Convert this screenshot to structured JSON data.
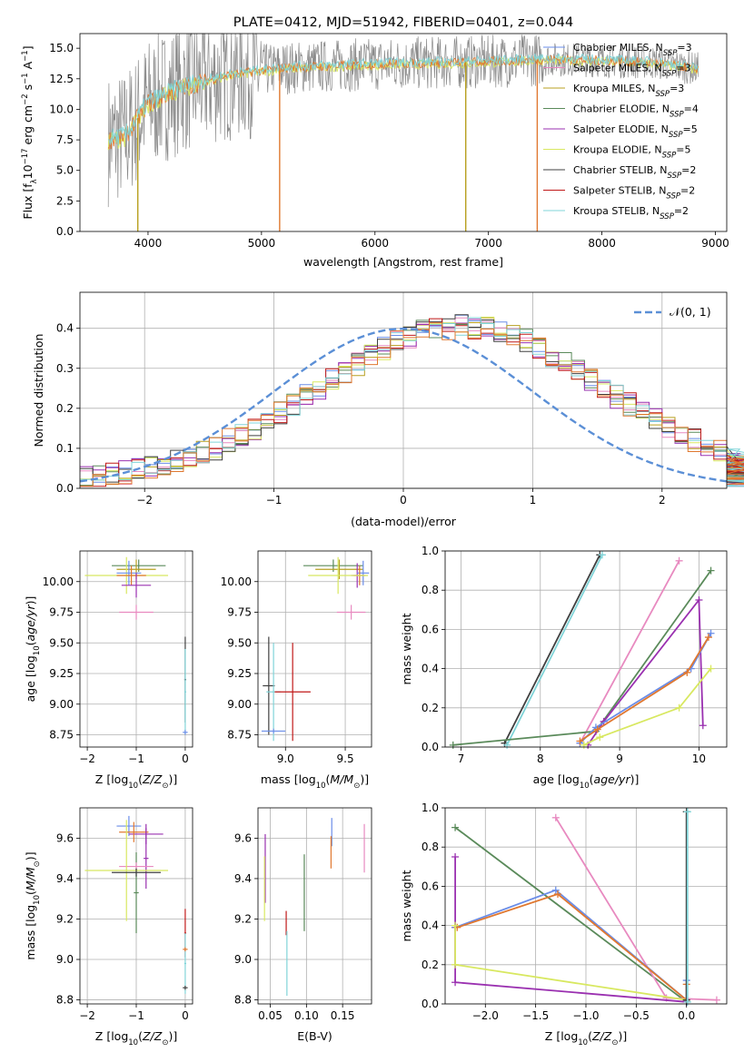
{
  "colors": {
    "Chabrier MILES": "#6a8de8",
    "Salpeter MILES": "#e88ac0",
    "Kroupa MILES": "#b8a020",
    "Chabrier ELODIE": "#5a8a5a",
    "Salpeter ELODIE": "#9a30b0",
    "Kroupa ELODIE": "#d8e860",
    "Chabrier STELIB": "#404040",
    "Salpeter STELIB": "#c01818",
    "Kroupa STELIB": "#80d4d8",
    "dark_orange": "#e07830",
    "spectrum_gray": "#8a8a8a",
    "normal_curve": "#5b8fd6"
  },
  "chart_data": [
    {
      "type": "line",
      "title": "PLATE=0412, MJD=51942, FIBERID=0401, z=0.044",
      "xlabel": "wavelength [Angstrom, rest frame]",
      "ylabel": "Flux [f",
      "xlim": [
        3400,
        9100
      ],
      "ylim": [
        0,
        16.2
      ],
      "xticks": [
        "4000",
        "5000",
        "6000",
        "7000",
        "8000",
        "9000"
      ],
      "xtick_values": [
        4000,
        5000,
        6000,
        7000,
        8000,
        9000
      ],
      "yticks": [
        "0.0",
        "2.5",
        "5.0",
        "7.5",
        "10.0",
        "12.5",
        "15.0"
      ],
      "ytick_values": [
        0,
        2.5,
        5,
        7.5,
        10,
        12.5,
        15
      ],
      "legend_position": "right",
      "legend": [
        {
          "name": "Chabrier MILES",
          "n": "3"
        },
        {
          "name": "Salpeter MILES",
          "n": "3"
        },
        {
          "name": "Kroupa MILES",
          "n": "3"
        },
        {
          "name": "Chabrier ELODIE",
          "n": "4"
        },
        {
          "name": "Salpeter ELODIE",
          "n": "5"
        },
        {
          "name": "Kroupa ELODIE",
          "n": "5"
        },
        {
          "name": "Chabrier STELIB",
          "n": "2"
        },
        {
          "name": "Salpeter STELIB",
          "n": "2"
        },
        {
          "name": "Kroupa STELIB",
          "n": "2"
        }
      ],
      "spectrum_shape": {
        "x": [
          3650,
          3800,
          4000,
          4300,
          4700,
          5200,
          6000,
          7000,
          7500,
          8000,
          8500,
          8850
        ],
        "y": [
          7.5,
          7.8,
          10.5,
          11.8,
          12.8,
          13.4,
          13.7,
          13.9,
          14.1,
          14.0,
          13.8,
          13.3
        ]
      },
      "drops": [
        {
          "x": 3910,
          "color": "Kroupa MILES"
        },
        {
          "x": 5160,
          "color": "dark_orange"
        },
        {
          "x": 6800,
          "color": "Kroupa MILES"
        },
        {
          "x": 7430,
          "color": "dark_orange"
        }
      ]
    },
    {
      "type": "histogram",
      "xlabel": "(data-model)/error",
      "ylabel": "Normed distribution",
      "xlim": [
        -2.5,
        2.5
      ],
      "ylim": [
        0,
        0.49
      ],
      "xticks": [
        "−2",
        "−1",
        "0",
        "1",
        "2"
      ],
      "xtick_values": [
        -2,
        -1,
        0,
        1,
        2
      ],
      "yticks": [
        "0.0",
        "0.1",
        "0.2",
        "0.3",
        "0.4"
      ],
      "ytick_values": [
        0,
        0.1,
        0.2,
        0.3,
        0.4
      ],
      "legend_label": "𝒩(0, 1)",
      "legend_position": "top-right",
      "bin_width": 0.1,
      "bin_start": -2.5,
      "base_hist": [
        0.03,
        0.03,
        0.035,
        0.04,
        0.05,
        0.055,
        0.06,
        0.07,
        0.08,
        0.09,
        0.1,
        0.12,
        0.13,
        0.15,
        0.17,
        0.19,
        0.21,
        0.23,
        0.25,
        0.27,
        0.29,
        0.31,
        0.33,
        0.35,
        0.37,
        0.38,
        0.39,
        0.4,
        0.4,
        0.41,
        0.4,
        0.4,
        0.39,
        0.38,
        0.37,
        0.35,
        0.33,
        0.31,
        0.29,
        0.27,
        0.25,
        0.23,
        0.21,
        0.19,
        0.17,
        0.15,
        0.13,
        0.12,
        0.1,
        0.09,
        0.08,
        0.07,
        0.06,
        0.055,
        0.05,
        0.04,
        0.035,
        0.03,
        0.03,
        0.025
      ],
      "normal_mean": 0,
      "normal_sd": 1
    },
    {
      "type": "errorbar",
      "xlabel": "Z [log",
      "ylabel": "age  [log",
      "xlim": [
        -2.15,
        0.15
      ],
      "ylim": [
        8.65,
        10.25
      ],
      "xticks": [
        "−2",
        "−1",
        "0"
      ],
      "xtick_values": [
        -2,
        -1,
        0
      ],
      "yticks": [
        "8.75",
        "9.00",
        "9.25",
        "9.50",
        "9.75",
        "10.00"
      ],
      "ytick_values": [
        8.75,
        9,
        9.25,
        9.5,
        9.75,
        10
      ],
      "points": [
        {
          "c": "Chabrier ELODIE",
          "x": -0.95,
          "y": 10.13,
          "xe": 0.55,
          "ye": 0.05
        },
        {
          "c": "Kroupa MILES",
          "x": -1.0,
          "y": 10.1,
          "xe": 0.4,
          "ye": 0.08
        },
        {
          "c": "Kroupa ELODIE",
          "x": -1.2,
          "y": 10.05,
          "xe": 0.85,
          "ye": 0.15
        },
        {
          "c": "Chabrier MILES",
          "x": -1.15,
          "y": 10.07,
          "xe": 0.25,
          "ye": 0.1
        },
        {
          "c": "dark_orange",
          "x": -1.1,
          "y": 10.05,
          "xe": 0.3,
          "ye": 0.08
        },
        {
          "c": "Salpeter ELODIE",
          "x": -1.0,
          "y": 9.97,
          "xe": 0.3,
          "ye": 0.1
        },
        {
          "c": "Salpeter MILES",
          "x": -1.0,
          "y": 9.75,
          "xe": 0.35,
          "ye": 0.06
        },
        {
          "c": "Chabrier STELIB",
          "x": 0.0,
          "y": 9.2,
          "xe": 0.02,
          "ye": 0.35
        },
        {
          "c": "Kroupa STELIB",
          "x": 0.0,
          "y": 9.1,
          "xe": 0.02,
          "ye": 0.35
        },
        {
          "c": "Chabrier MILES",
          "x": 0.0,
          "y": 8.77,
          "xe": 0.05,
          "ye": 0.02
        }
      ]
    },
    {
      "type": "errorbar",
      "xlabel": "mass [log",
      "ylabel": "",
      "xlim": [
        8.77,
        9.72
      ],
      "ylim": [
        8.65,
        10.25
      ],
      "xticks": [
        "9.0",
        "9.5"
      ],
      "xtick_values": [
        9.0,
        9.5
      ],
      "yticks": [
        "8.75",
        "9.00",
        "9.25",
        "9.50",
        "9.75",
        "10.00"
      ],
      "ytick_values": [
        8.75,
        9,
        9.25,
        9.5,
        9.75,
        10
      ],
      "points": [
        {
          "c": "Chabrier ELODIE",
          "x": 9.4,
          "y": 10.13,
          "xe": 0.25,
          "ye": 0.05
        },
        {
          "c": "Kroupa MILES",
          "x": 9.45,
          "y": 10.1,
          "xe": 0.2,
          "ye": 0.08
        },
        {
          "c": "Salpeter ELODIE",
          "x": 9.6,
          "y": 10.05,
          "xe": 0.05,
          "ye": 0.1
        },
        {
          "c": "Chabrier MILES",
          "x": 9.65,
          "y": 10.07,
          "xe": 0.05,
          "ye": 0.1
        },
        {
          "c": "dark_orange",
          "x": 9.62,
          "y": 10.05,
          "xe": 0.05,
          "ye": 0.08
        },
        {
          "c": "Kroupa ELODIE",
          "x": 9.44,
          "y": 10.05,
          "xe": 0.25,
          "ye": 0.15
        },
        {
          "c": "Salpeter MILES",
          "x": 9.55,
          "y": 9.75,
          "xe": 0.12,
          "ye": 0.06
        },
        {
          "c": "Chabrier STELIB",
          "x": 8.86,
          "y": 9.15,
          "xe": 0.05,
          "ye": 0.4
        },
        {
          "c": "Kroupa STELIB",
          "x": 8.9,
          "y": 9.1,
          "xe": 0.06,
          "ye": 0.4
        },
        {
          "c": "Salpeter STELIB",
          "x": 9.06,
          "y": 9.1,
          "xe": 0.15,
          "ye": 0.4
        },
        {
          "c": "Chabrier MILES",
          "x": 8.9,
          "y": 8.78,
          "xe": 0.1,
          "ye": 0.02
        }
      ]
    },
    {
      "type": "line",
      "xlabel": "age  [log",
      "ylabel": "mass weight",
      "xlim": [
        6.8,
        10.35
      ],
      "ylim": [
        0,
        1
      ],
      "xticks": [
        "7",
        "8",
        "9",
        "10"
      ],
      "xtick_values": [
        7,
        8,
        9,
        10
      ],
      "yticks": [
        "0.0",
        "0.2",
        "0.4",
        "0.6",
        "0.8",
        "1.0"
      ],
      "ytick_values": [
        0,
        0.2,
        0.4,
        0.6,
        0.8,
        1
      ],
      "series": [
        {
          "c": "Chabrier STELIB",
          "x": [
            7.55,
            8.75
          ],
          "y": [
            0.02,
            0.98
          ]
        },
        {
          "c": "Kroupa STELIB",
          "x": [
            7.58,
            8.78
          ],
          "y": [
            0.01,
            0.98
          ]
        },
        {
          "c": "Salpeter MILES",
          "x": [
            8.5,
            9.75
          ],
          "y": [
            0.02,
            0.95
          ]
        },
        {
          "c": "Chabrier ELODIE",
          "x": [
            6.9,
            8.7,
            10.15
          ],
          "y": [
            0.01,
            0.08,
            0.9
          ]
        },
        {
          "c": "Salpeter ELODIE",
          "x": [
            8.6,
            8.8,
            10.0,
            10.05
          ],
          "y": [
            0.01,
            0.13,
            0.75,
            0.11
          ]
        },
        {
          "c": "Chabrier MILES",
          "x": [
            8.5,
            8.7,
            9.9,
            10.15
          ],
          "y": [
            0.02,
            0.1,
            0.4,
            0.58
          ]
        },
        {
          "c": "dark_orange",
          "x": [
            8.5,
            8.72,
            9.85,
            10.12
          ],
          "y": [
            0.03,
            0.09,
            0.38,
            0.56
          ]
        },
        {
          "c": "Kroupa ELODIE",
          "x": [
            8.55,
            8.75,
            9.75,
            10.15
          ],
          "y": [
            0.01,
            0.05,
            0.2,
            0.4
          ]
        }
      ]
    },
    {
      "type": "errorbar",
      "xlabel": "Z [log",
      "ylabel": "mass [log",
      "xlim": [
        -2.15,
        0.15
      ],
      "ylim": [
        8.78,
        9.75
      ],
      "xticks": [
        "−2",
        "−1",
        "0"
      ],
      "xtick_values": [
        -2,
        -1,
        0
      ],
      "yticks": [
        "8.8",
        "9.0",
        "9.2",
        "9.4",
        "9.6"
      ],
      "ytick_values": [
        8.8,
        9,
        9.2,
        9.4,
        9.6
      ],
      "points": [
        {
          "c": "Chabrier MILES",
          "x": -1.15,
          "y": 9.66,
          "xe": 0.25,
          "ye": 0.05
        },
        {
          "c": "Salpeter ELODIE",
          "x": -0.8,
          "y": 9.62,
          "xe": 0.35,
          "ye": 0.05
        },
        {
          "c": "dark_orange",
          "x": -1.05,
          "y": 9.63,
          "xe": 0.3,
          "ye": 0.05
        },
        {
          "c": "Salpeter ELODIE",
          "x": -0.8,
          "y": 9.5,
          "xe": 0.05,
          "ye": 0.15
        },
        {
          "c": "Chabrier ELODIE",
          "x": -1.0,
          "y": 9.33,
          "xe": 0.05,
          "ye": 0.2
        },
        {
          "c": "Salpeter MILES",
          "x": -1.0,
          "y": 9.46,
          "xe": 0.35,
          "ye": 0.02
        },
        {
          "c": "Kroupa ELODIE",
          "x": -1.2,
          "y": 9.44,
          "xe": 0.85,
          "ye": 0.25
        },
        {
          "c": "Chabrier STELIB",
          "x": -1.0,
          "y": 9.43,
          "xe": 0.5,
          "ye": 0.02
        },
        {
          "c": "Salpeter STELIB",
          "x": 0.0,
          "y": 9.13,
          "xe": 0.02,
          "ye": 0.12
        },
        {
          "c": "Kroupa STELIB",
          "x": 0.0,
          "y": 8.98,
          "xe": 0.02,
          "ye": 0.15
        },
        {
          "c": "dark_orange",
          "x": 0.0,
          "y": 9.05,
          "xe": 0.05,
          "ye": 0.01
        },
        {
          "c": "Chabrier STELIB",
          "x": 0.0,
          "y": 8.86,
          "xe": 0.05,
          "ye": 0.01
        }
      ]
    },
    {
      "type": "errorbar",
      "xlabel": "E(B-V)",
      "ylabel": "",
      "xlim": [
        0.033,
        0.19
      ],
      "ylim": [
        8.78,
        9.75
      ],
      "xticks": [
        "0.05",
        "0.10",
        "0.15"
      ],
      "xtick_values": [
        0.05,
        0.1,
        0.15
      ],
      "yticks": [
        "8.8",
        "9.0",
        "9.2",
        "9.4",
        "9.6"
      ],
      "ytick_values": [
        8.8,
        9,
        9.2,
        9.4,
        9.6
      ],
      "points": [
        {
          "c": "Salpeter ELODIE",
          "x": 0.043,
          "y": 9.45,
          "xe": 0,
          "ye": 0.17
        },
        {
          "c": "Kroupa ELODIE",
          "x": 0.042,
          "y": 9.35,
          "xe": 0,
          "ye": 0.16
        },
        {
          "c": "Salpeter STELIB",
          "x": 0.072,
          "y": 9.18,
          "xe": 0,
          "ye": 0.06
        },
        {
          "c": "Kroupa STELIB",
          "x": 0.073,
          "y": 8.98,
          "xe": 0,
          "ye": 0.16
        },
        {
          "c": "Chabrier ELODIE",
          "x": 0.097,
          "y": 9.33,
          "xe": 0,
          "ye": 0.19
        },
        {
          "c": "Chabrier MILES",
          "x": 0.135,
          "y": 9.63,
          "xe": 0,
          "ye": 0.07
        },
        {
          "c": "dark_orange",
          "x": 0.134,
          "y": 9.53,
          "xe": 0,
          "ye": 0.08
        },
        {
          "c": "Salpeter MILES",
          "x": 0.18,
          "y": 9.55,
          "xe": 0,
          "ye": 0.12
        }
      ]
    },
    {
      "type": "line",
      "xlabel": "Z [log",
      "ylabel": "mass weight",
      "xlim": [
        -2.4,
        0.4
      ],
      "ylim": [
        0,
        1
      ],
      "xticks": [
        "−2.0",
        "−1.5",
        "−1.0",
        "−0.5",
        "0.0"
      ],
      "xtick_values": [
        -2,
        -1.5,
        -1,
        -0.5,
        0
      ],
      "yticks": [
        "0.0",
        "0.2",
        "0.4",
        "0.6",
        "0.8",
        "1.0"
      ],
      "ytick_values": [
        0,
        0.2,
        0.4,
        0.6,
        0.8,
        1
      ],
      "series": [
        {
          "c": "Chabrier ELODIE",
          "x": [
            -2.3,
            0.0
          ],
          "y": [
            0.9,
            0.01
          ]
        },
        {
          "c": "Salpeter MILES",
          "x": [
            -1.3,
            -0.2,
            0.3
          ],
          "y": [
            0.95,
            0.03,
            0.02
          ]
        },
        {
          "c": "Salpeter ELODIE",
          "x": [
            -2.3,
            -2.3,
            -2.3,
            0.0
          ],
          "y": [
            0.75,
            0.39,
            0.11,
            0.01
          ]
        },
        {
          "c": "Chabrier MILES",
          "x": [
            -2.3,
            -1.3,
            0.0,
            0.0
          ],
          "y": [
            0.39,
            0.58,
            0.02,
            0.12
          ]
        },
        {
          "c": "dark_orange",
          "x": [
            -2.28,
            -1.28,
            0.0,
            0.0
          ],
          "y": [
            0.39,
            0.56,
            0.02,
            0.1
          ]
        },
        {
          "c": "Kroupa ELODIE",
          "x": [
            -2.3,
            -2.3,
            0.0
          ],
          "y": [
            0.4,
            0.2,
            0.02
          ]
        },
        {
          "c": "Chabrier STELIB",
          "x": [
            0.0,
            0.0
          ],
          "y": [
            0.02,
            0.98
          ]
        },
        {
          "c": "Kroupa STELIB",
          "x": [
            0.01,
            0.01
          ],
          "y": [
            0.01,
            0.98
          ]
        }
      ]
    }
  ]
}
